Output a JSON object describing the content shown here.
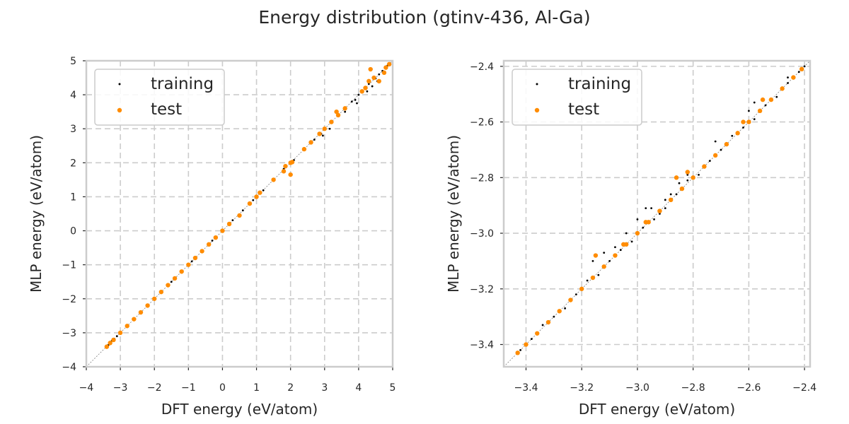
{
  "suptitle": "Energy distribution (gtinv-436, Al-Ga)",
  "colors": {
    "training": "#000000",
    "test": "#ff8c00",
    "identity": "#808080",
    "grid": "#cccccc"
  },
  "chart_data": [
    {
      "type": "scatter",
      "title": "",
      "xlabel": "DFT energy (eV/atom)",
      "ylabel": "MLP energy (eV/atom)",
      "xlim": [
        -4,
        5
      ],
      "ylim": [
        -4,
        5
      ],
      "xticks": [
        -4,
        -3,
        -2,
        -1,
        0,
        1,
        2,
        3,
        4,
        5
      ],
      "yticks": [
        -4,
        -3,
        -2,
        -1,
        0,
        1,
        2,
        3,
        4,
        5
      ],
      "xtick_labels": [
        "−4",
        "−3",
        "−2",
        "−1",
        "0",
        "1",
        "2",
        "3",
        "4",
        "5"
      ],
      "ytick_labels": [
        "−4",
        "−3",
        "−2",
        "−1",
        "0",
        "1",
        "2",
        "3",
        "4",
        "5"
      ],
      "grid": true,
      "legend_position": "top-left",
      "identity_line": true,
      "series": [
        {
          "name": "training",
          "color": "#000000",
          "marker": "small-dot",
          "x": [
            -3.42,
            -3.35,
            -3.25,
            -3.1,
            -3.0,
            -2.8,
            -2.6,
            -2.4,
            -2.2,
            -2.0,
            -1.8,
            -1.5,
            -1.2,
            -0.9,
            -0.6,
            -0.3,
            0.0,
            0.3,
            0.6,
            0.9,
            1.2,
            1.5,
            1.8,
            2.1,
            2.4,
            2.7,
            2.9,
            3.0,
            3.2,
            3.4,
            3.6,
            3.8,
            3.9,
            4.0,
            4.2,
            4.3,
            4.5,
            4.6,
            4.7,
            4.8,
            4.85,
            2.95,
            3.15,
            3.6,
            3.95,
            4.25,
            4.4,
            4.55
          ],
          "y": [
            -3.42,
            -3.36,
            -3.24,
            -3.1,
            -3.01,
            -2.8,
            -2.59,
            -2.41,
            -2.2,
            -2.0,
            -1.79,
            -1.5,
            -1.21,
            -0.9,
            -0.61,
            -0.29,
            0.0,
            0.31,
            0.6,
            0.9,
            1.19,
            1.5,
            1.82,
            2.08,
            2.42,
            2.68,
            2.85,
            3.02,
            3.18,
            3.38,
            3.58,
            3.8,
            3.85,
            4.0,
            4.18,
            4.32,
            4.48,
            4.6,
            4.7,
            4.78,
            4.86,
            2.8,
            3.0,
            3.5,
            3.75,
            4.1,
            4.25,
            4.4
          ]
        },
        {
          "name": "test",
          "color": "#ff8c00",
          "marker": "dot",
          "x": [
            -3.4,
            -3.3,
            -3.2,
            -3.0,
            -2.8,
            -2.6,
            -2.4,
            -2.2,
            -2.0,
            -1.8,
            -1.6,
            -1.4,
            -1.2,
            -1.0,
            -0.8,
            -0.6,
            -0.4,
            -0.2,
            0.0,
            0.2,
            0.5,
            0.8,
            1.0,
            1.1,
            1.5,
            1.8,
            1.85,
            2.0,
            2.05,
            2.4,
            2.6,
            2.85,
            3.0,
            3.2,
            3.4,
            3.6,
            4.1,
            4.3,
            4.35,
            4.45,
            4.6,
            4.75,
            4.8,
            4.9,
            3.35,
            2.0,
            4.2
          ],
          "y": [
            -3.41,
            -3.3,
            -3.21,
            -3.0,
            -2.8,
            -2.6,
            -2.4,
            -2.2,
            -2.0,
            -1.8,
            -1.6,
            -1.4,
            -1.2,
            -1.0,
            -0.8,
            -0.6,
            -0.4,
            -0.2,
            0.0,
            0.2,
            0.45,
            0.8,
            1.0,
            1.12,
            1.5,
            1.75,
            1.9,
            2.0,
            2.02,
            2.4,
            2.6,
            2.85,
            3.0,
            3.2,
            3.4,
            3.6,
            4.1,
            4.4,
            4.75,
            4.5,
            4.4,
            4.65,
            4.8,
            4.9,
            3.5,
            1.65,
            4.2
          ]
        }
      ]
    },
    {
      "type": "scatter",
      "title": "",
      "xlabel": "DFT energy (eV/atom)",
      "ylabel": "MLP energy (eV/atom)",
      "xlim": [
        -3.48,
        -2.38
      ],
      "ylim": [
        -3.48,
        -2.38
      ],
      "xticks": [
        -3.4,
        -3.2,
        -3.0,
        -2.8,
        -2.6,
        -2.4
      ],
      "yticks": [
        -3.4,
        -3.2,
        -3.0,
        -2.8,
        -2.6,
        -2.4
      ],
      "xtick_labels": [
        "−3.4",
        "−3.2",
        "−3.0",
        "−2.8",
        "−2.6",
        "−2.4"
      ],
      "ytick_labels": [
        "−3.4",
        "−3.2",
        "−3.0",
        "−2.8",
        "−2.6",
        "−2.4"
      ],
      "grid": true,
      "legend_position": "top-left",
      "identity_line": true,
      "series": [
        {
          "name": "training",
          "color": "#000000",
          "marker": "small-dot",
          "x": [
            -3.42,
            -3.38,
            -3.34,
            -3.3,
            -3.26,
            -3.22,
            -3.18,
            -3.14,
            -3.1,
            -3.06,
            -3.02,
            -2.98,
            -2.94,
            -2.9,
            -2.86,
            -2.82,
            -2.78,
            -2.74,
            -2.7,
            -2.66,
            -2.62,
            -2.58,
            -2.54,
            -2.5,
            -2.46,
            -2.42,
            -2.4,
            -3.16,
            -3.12,
            -3.08,
            -3.04,
            -3.0,
            -2.97,
            -2.95,
            -2.88,
            -2.85,
            -2.82,
            -2.72,
            -2.6,
            -2.58,
            -2.55,
            -2.48,
            -2.46,
            -2.92,
            -2.9,
            -3.05
          ],
          "y": [
            -3.42,
            -3.38,
            -3.33,
            -3.3,
            -3.27,
            -3.22,
            -3.17,
            -3.15,
            -3.1,
            -3.06,
            -3.03,
            -2.98,
            -2.95,
            -2.91,
            -2.86,
            -2.81,
            -2.79,
            -2.74,
            -2.7,
            -2.65,
            -2.62,
            -2.59,
            -2.54,
            -2.51,
            -2.46,
            -2.42,
            -2.4,
            -3.1,
            -3.07,
            -3.05,
            -3.0,
            -2.95,
            -2.91,
            -2.91,
            -2.86,
            -2.82,
            -2.79,
            -2.67,
            -2.56,
            -2.53,
            -2.52,
            -2.48,
            -2.44,
            -2.93,
            -2.88,
            -3.04
          ]
        },
        {
          "name": "test",
          "color": "#ff8c00",
          "marker": "dot",
          "x": [
            -3.43,
            -3.4,
            -3.36,
            -3.32,
            -3.28,
            -3.24,
            -3.2,
            -3.16,
            -3.12,
            -3.08,
            -3.04,
            -3.0,
            -2.96,
            -2.92,
            -2.88,
            -2.84,
            -2.8,
            -2.76,
            -2.72,
            -2.68,
            -2.64,
            -2.6,
            -2.56,
            -2.52,
            -2.48,
            -2.44,
            -2.41,
            -3.15,
            -3.05,
            -2.97,
            -2.86,
            -2.82,
            -2.55,
            -2.62
          ],
          "y": [
            -3.43,
            -3.4,
            -3.36,
            -3.32,
            -3.28,
            -3.24,
            -3.2,
            -3.16,
            -3.12,
            -3.08,
            -3.04,
            -3.0,
            -2.96,
            -2.92,
            -2.88,
            -2.84,
            -2.8,
            -2.76,
            -2.72,
            -2.68,
            -2.64,
            -2.6,
            -2.56,
            -2.52,
            -2.48,
            -2.44,
            -2.41,
            -3.08,
            -3.04,
            -2.96,
            -2.8,
            -2.78,
            -2.52,
            -2.6
          ]
        }
      ]
    }
  ]
}
